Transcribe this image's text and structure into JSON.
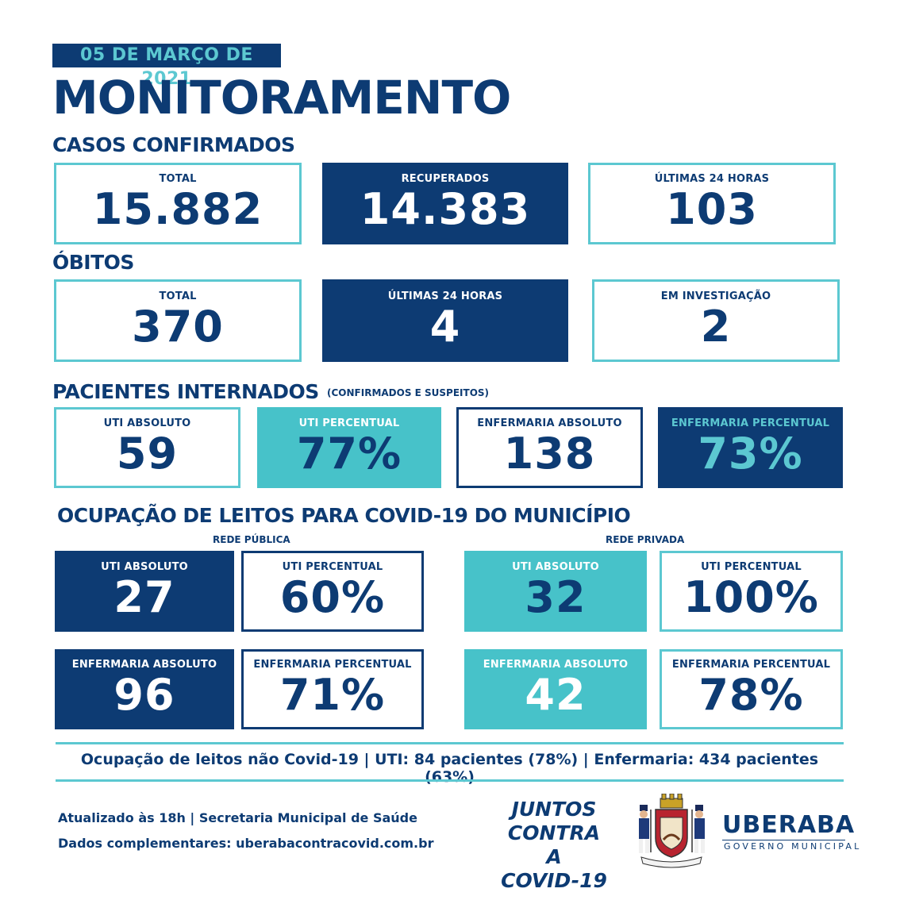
{
  "date": "05 DE MARÇO DE 2021",
  "title": "MONITORAMENTO",
  "casos": {
    "heading": "CASOS CONFIRMADOS",
    "total": {
      "label": "TOTAL",
      "value": "15.882"
    },
    "recuperados": {
      "label": "RECUPERADOS",
      "value": "14.383"
    },
    "ultimas24": {
      "label": "ÚLTIMAS 24 HORAS",
      "value": "103"
    }
  },
  "obitos": {
    "heading": "ÓBITOS",
    "total": {
      "label": "TOTAL",
      "value": "370"
    },
    "ultimas24": {
      "label": "ÚLTIMAS 24 HORAS",
      "value": "4"
    },
    "investigacao": {
      "label": "EM INVESTIGAÇÃO",
      "value": "2"
    }
  },
  "internados": {
    "heading": "PACIENTES INTERNADOS",
    "note": "(CONFIRMADOS E SUSPEITOS)",
    "uti_abs": {
      "label": "UTI ABSOLUTO",
      "value": "59"
    },
    "uti_pct": {
      "label": "UTI PERCENTUAL",
      "value": "77%"
    },
    "enf_abs": {
      "label": "ENFERMARIA ABSOLUTO",
      "value": "138"
    },
    "enf_pct": {
      "label": "ENFERMARIA PERCENTUAL",
      "value": "73%"
    }
  },
  "ocupacao": {
    "heading": "OCUPAÇÃO DE LEITOS PARA COVID-19 DO MUNICÍPIO",
    "publica": {
      "label": "REDE PÚBLICA",
      "uti_abs": {
        "label": "UTI ABSOLUTO",
        "value": "27"
      },
      "uti_pct": {
        "label": "UTI PERCENTUAL",
        "value": "60%"
      },
      "enf_abs": {
        "label": "ENFERMARIA ABSOLUTO",
        "value": "96"
      },
      "enf_pct": {
        "label": "ENFERMARIA PERCENTUAL",
        "value": "71%"
      }
    },
    "privada": {
      "label": "REDE PRIVADA",
      "uti_abs": {
        "label": "UTI ABSOLUTO",
        "value": "32"
      },
      "uti_pct": {
        "label": "UTI PERCENTUAL",
        "value": "100%"
      },
      "enf_abs": {
        "label": "ENFERMARIA ABSOLUTO",
        "value": "42"
      },
      "enf_pct": {
        "label": "ENFERMARIA PERCENTUAL",
        "value": "78%"
      }
    }
  },
  "nao_covid": "Ocupação de leitos não Covid-19 | UTI: 84 pacientes (78%) | Enfermaria: 434 pacientes (63%)",
  "footer": {
    "atualizado": "Atualizado às 18h | Secretaria Municipal de Saúde",
    "dados": "Dados complementares: uberabacontracovid.com.br",
    "juntos": [
      "JUNTOS",
      "CONTRA A",
      "COVID-19"
    ],
    "city": "UBERABA",
    "gov": "GOVERNO MUNICIPAL"
  },
  "colors": {
    "navy": "#0d3b73",
    "teal": "#47c2c9",
    "teal_light": "#5cc8d1"
  },
  "icons": {
    "emblem": "coat-of-arms-icon"
  }
}
